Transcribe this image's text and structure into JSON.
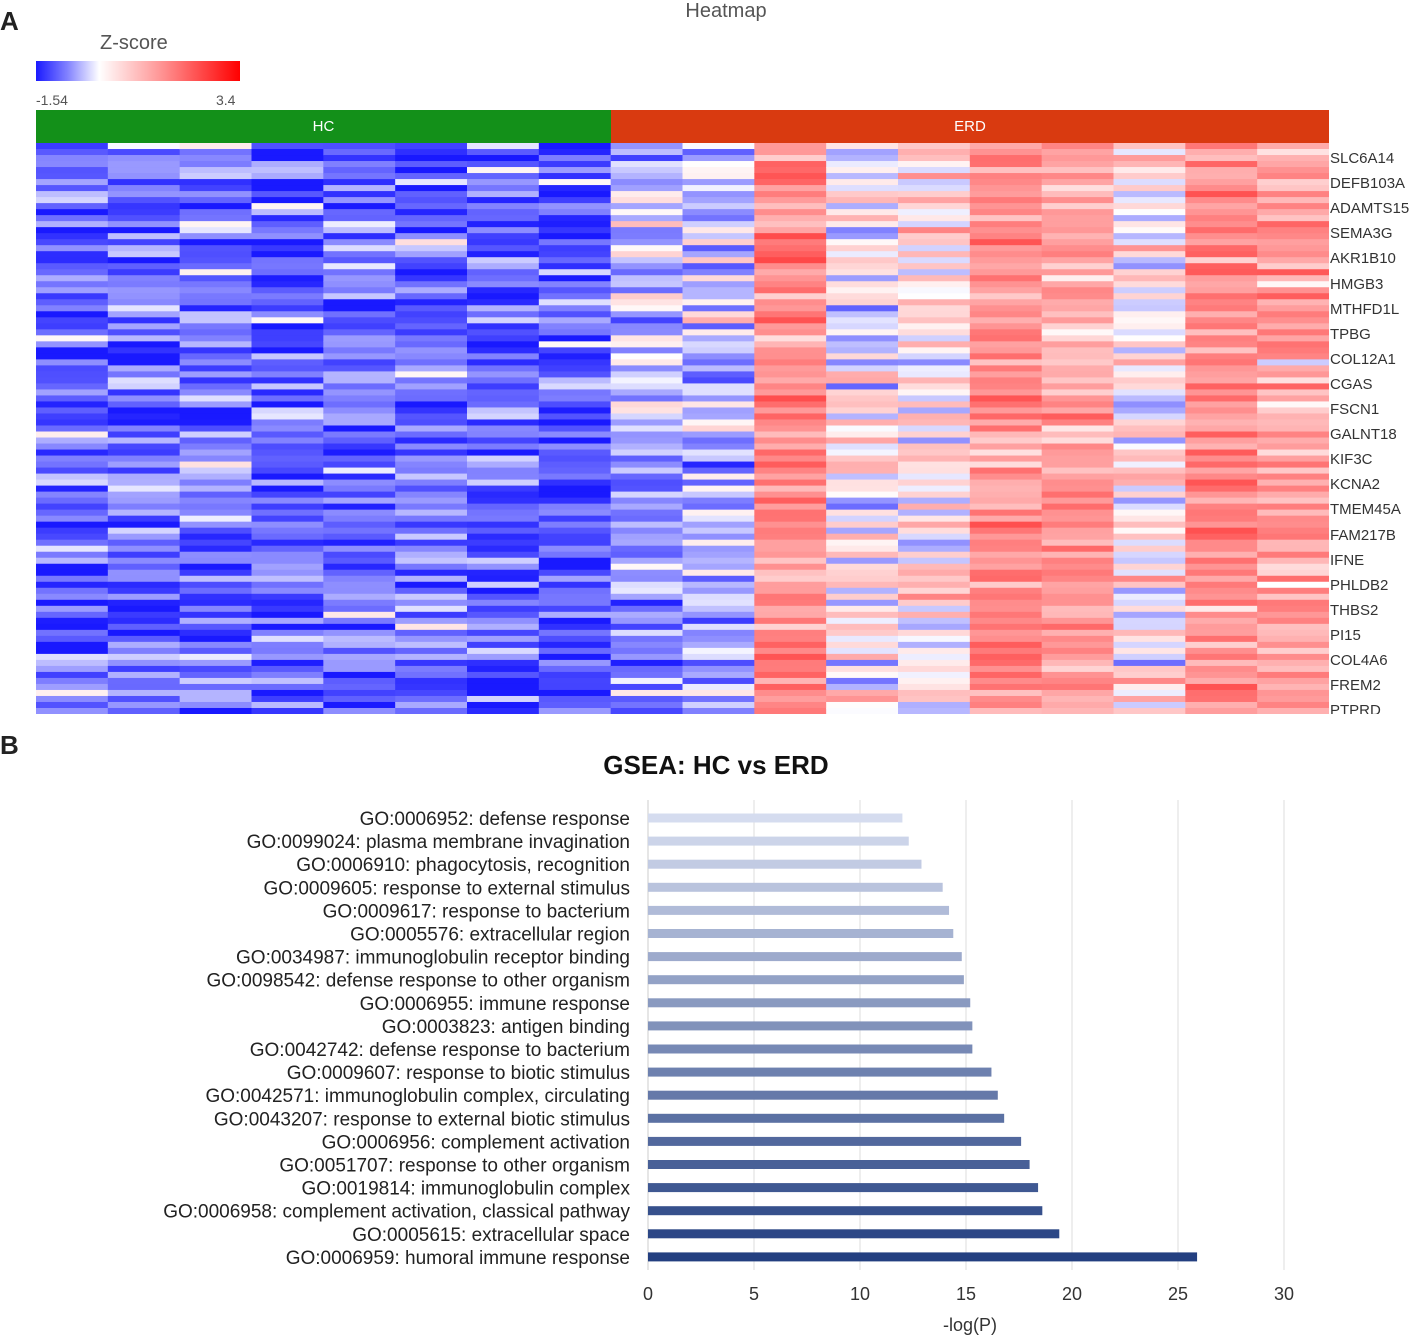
{
  "panels": {
    "a": "A",
    "b": "B"
  },
  "heatmap": {
    "title": "Heatmap",
    "legend": {
      "title": "Z-score",
      "min": "-1.54",
      "max": "3.4",
      "colors": {
        "low": "#1a1aff",
        "mid": "#ffffff",
        "high": "#ff0000"
      }
    },
    "groups": [
      {
        "name": "HC",
        "color": "#139019",
        "n_columns": 8
      },
      {
        "name": "ERD",
        "color": "#d93a10",
        "n_columns": 10
      }
    ],
    "column_means": [
      -1.0,
      -0.9,
      -0.8,
      -1.0,
      -0.9,
      -0.9,
      -1.0,
      -1.0,
      -0.5,
      -0.4,
      1.3,
      0.1,
      0.2,
      1.2,
      1.0,
      0.1,
      1.3,
      1.0
    ],
    "gene_labels": [
      "SLC6A14",
      "DEFB103A",
      "ADAMTS15",
      "SEMA3G",
      "AKR1B10",
      "HMGB3",
      "MTHFD1L",
      "TPBG",
      "COL12A1",
      "CGAS",
      "FSCN1",
      "GALNT18",
      "KIF3C",
      "KCNA2",
      "TMEM45A",
      "FAM217B",
      "IFNE",
      "PHLDB2",
      "THBS2",
      "PI15",
      "COL4A6",
      "FREM2",
      "PTPRD"
    ]
  },
  "chart_data": {
    "type": "bar",
    "orientation": "horizontal",
    "title": "GSEA: HC vs ERD",
    "xlabel": "-log(P)",
    "ylabel": "",
    "xlim": [
      0,
      30
    ],
    "xticks": [
      "0",
      "5",
      "10",
      "15",
      "20",
      "25",
      "30"
    ],
    "grid": "vertical",
    "categories": [
      "GO:0006952: defense response",
      "GO:0099024: plasma membrane invagination",
      "GO:0006910: phagocytosis, recognition",
      "GO:0009605: response to external stimulus",
      "GO:0009617: response to bacterium",
      "GO:0005576: extracellular region",
      "GO:0034987: immunoglobulin receptor binding",
      "GO:0098542: defense response to other organism",
      "GO:0006955: immune response",
      "GO:0003823: antigen binding",
      "GO:0042742: defense response to bacterium",
      "GO:0009607: response to biotic stimulus",
      "GO:0042571: immunoglobulin complex, circulating",
      "GO:0043207: response to external biotic stimulus",
      "GO:0006956: complement activation",
      "GO:0051707: response to other organism",
      "GO:0019814: immunoglobulin complex",
      "GO:0006958: complement activation, classical pathway",
      "GO:0005615: extracellular space",
      "GO:0006959: humoral immune response"
    ],
    "values": [
      12.0,
      12.3,
      12.9,
      13.9,
      14.2,
      14.4,
      14.8,
      14.9,
      15.2,
      15.3,
      15.3,
      16.2,
      16.5,
      16.8,
      17.6,
      18.0,
      18.4,
      18.6,
      19.4,
      25.9
    ],
    "colors": {
      "lightest": "#d5dcef",
      "darkest": "#233f80",
      "grid": "#dddddd"
    }
  }
}
